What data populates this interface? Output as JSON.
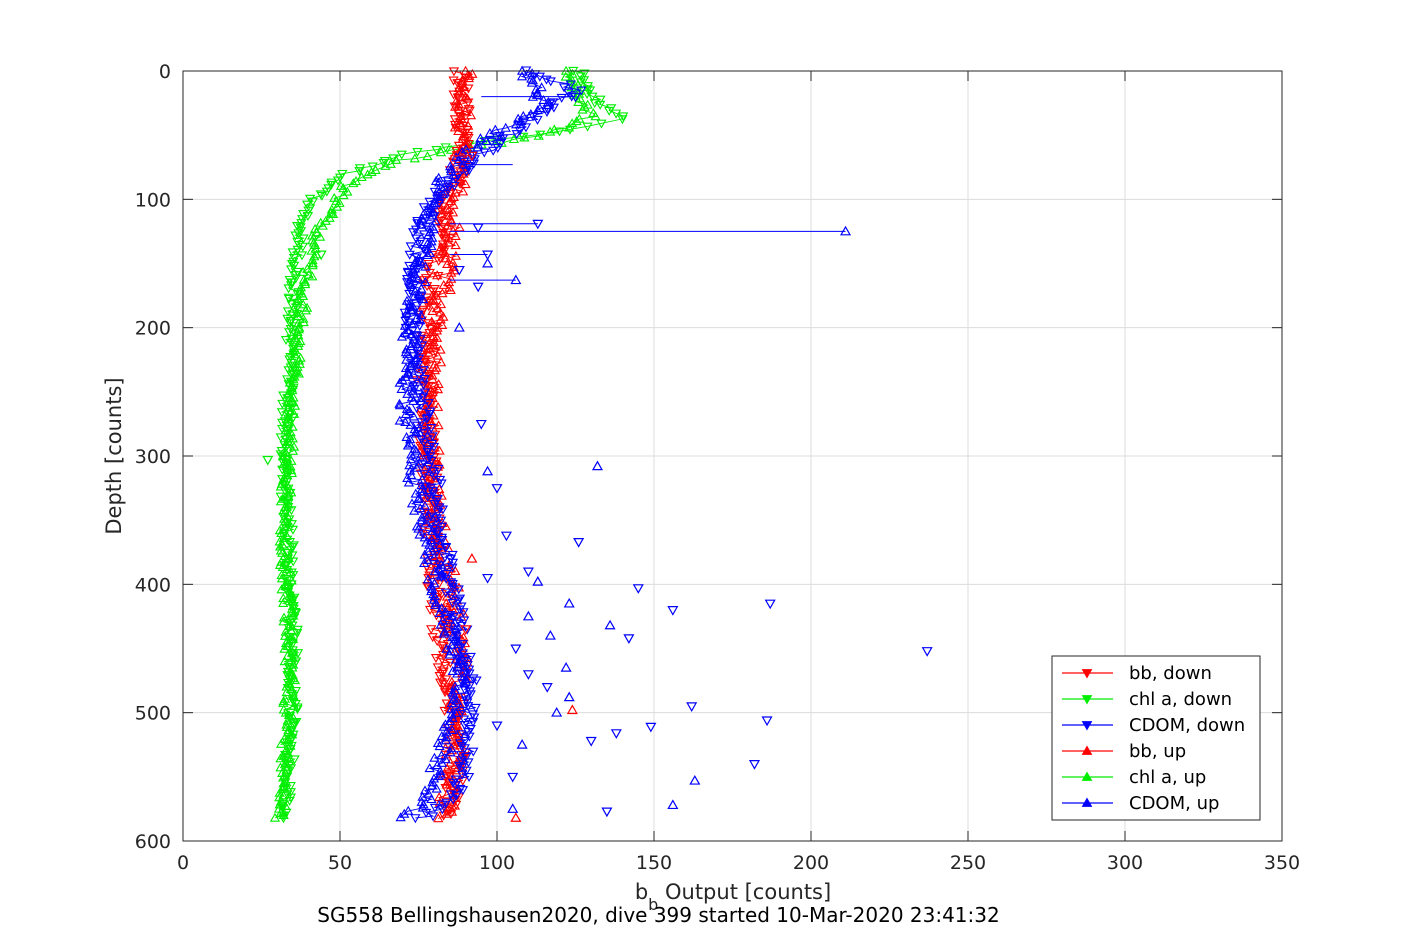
{
  "chart_data": {
    "type": "scatter",
    "xlabel": {
      "main": "b",
      "sub": "b",
      "rest": " Output [counts]"
    },
    "ylabel": "Depth [counts]",
    "xlim": [
      0,
      350
    ],
    "ylim": [
      0,
      600
    ],
    "y_reversed": true,
    "grid": true,
    "legend_placement": "bottom-right",
    "x_ticks": [
      0,
      50,
      100,
      150,
      200,
      250,
      300,
      350
    ],
    "y_ticks": [
      0,
      100,
      200,
      300,
      400,
      500,
      600
    ],
    "colors": {
      "bb": "#ff0000",
      "chla": "#00ee00",
      "cdom": "#0000ff"
    },
    "series": [
      {
        "name": "bb, down",
        "color": "#ff0000",
        "marker": "triangle-down",
        "x": [
          89,
          88,
          89,
          90,
          89,
          88,
          86,
          83,
          81,
          80,
          79,
          78,
          78,
          77,
          78,
          78,
          79,
          79,
          80,
          81,
          82,
          84,
          86,
          87,
          88,
          86,
          85,
          83
        ],
        "y": [
          0,
          20,
          40,
          50,
          60,
          70,
          90,
          110,
          130,
          150,
          170,
          190,
          210,
          240,
          270,
          300,
          330,
          360,
          390,
          420,
          450,
          480,
          500,
          520,
          540,
          560,
          570,
          580
        ]
      },
      {
        "name": "chl a, down",
        "color": "#00ee00",
        "marker": "triangle-down",
        "x": [
          126,
          130,
          140,
          125,
          95,
          70,
          52,
          42,
          38,
          36,
          35,
          34,
          34,
          33,
          32,
          33,
          34,
          34,
          35,
          35,
          35,
          34,
          34,
          33,
          32
        ],
        "y": [
          0,
          20,
          38,
          45,
          55,
          65,
          80,
          100,
          120,
          150,
          180,
          210,
          240,
          270,
          300,
          340,
          380,
          410,
          440,
          470,
          500,
          530,
          550,
          570,
          582
        ]
      },
      {
        "name": "CDOM, down",
        "color": "#0000ff",
        "marker": "triangle-down",
        "x": [
          112,
          125,
          115,
          108,
          100,
          92,
          84,
          78,
          75,
          74,
          73,
          74,
          75,
          77,
          79,
          81,
          83,
          85,
          88,
          90,
          92,
          91,
          90,
          89,
          86,
          80,
          74
        ],
        "y": [
          0,
          15,
          30,
          42,
          55,
          70,
          90,
          110,
          130,
          160,
          190,
          220,
          250,
          280,
          310,
          340,
          370,
          400,
          430,
          460,
          490,
          510,
          530,
          550,
          565,
          578,
          582
        ]
      },
      {
        "name": "bb, up",
        "color": "#ff0000",
        "marker": "triangle-up",
        "x": [
          84,
          84,
          85,
          86,
          86,
          87,
          88,
          88,
          87,
          86,
          84,
          82,
          80,
          79,
          79,
          80,
          82,
          86,
          88,
          89,
          89,
          89,
          90,
          91,
          90
        ],
        "y": [
          582,
          570,
          550,
          530,
          510,
          490,
          470,
          450,
          430,
          410,
          390,
          370,
          340,
          300,
          260,
          220,
          180,
          120,
          80,
          60,
          40,
          30,
          20,
          10,
          0
        ]
      },
      {
        "name": "chl a, up",
        "color": "#00ee00",
        "marker": "triangle-up",
        "x": [
          31,
          32,
          33,
          34,
          34,
          33,
          32,
          33,
          34,
          36,
          38,
          42,
          52,
          68,
          90,
          115,
          130,
          125,
          122
        ],
        "y": [
          582,
          560,
          520,
          480,
          440,
          400,
          360,
          320,
          280,
          230,
          180,
          130,
          90,
          70,
          60,
          50,
          35,
          15,
          0
        ]
      },
      {
        "name": "CDOM, up",
        "color": "#0000ff",
        "marker": "triangle-up",
        "x": [
          72,
          76,
          80,
          84,
          88,
          86,
          82,
          78,
          75,
          72,
          71,
          72,
          74,
          76,
          78,
          82,
          88,
          96,
          106,
          115,
          112,
          108
        ],
        "y": [
          582,
          570,
          550,
          520,
          480,
          450,
          410,
          370,
          330,
          290,
          250,
          210,
          180,
          150,
          120,
          90,
          70,
          55,
          40,
          25,
          10,
          0
        ]
      }
    ],
    "outliers_down": [
      {
        "s": 2,
        "x": 125,
        "y": 20
      },
      {
        "s": 2,
        "x": 113,
        "y": 119
      },
      {
        "s": 2,
        "x": 94,
        "y": 122
      },
      {
        "s": 2,
        "x": 97,
        "y": 143
      },
      {
        "s": 2,
        "x": 88,
        "y": 155
      },
      {
        "s": 2,
        "x": 94,
        "y": 168
      },
      {
        "s": 2,
        "x": 95,
        "y": 275
      },
      {
        "s": 2,
        "x": 100,
        "y": 325
      },
      {
        "s": 2,
        "x": 103,
        "y": 362
      },
      {
        "s": 2,
        "x": 126,
        "y": 367
      },
      {
        "s": 2,
        "x": 110,
        "y": 390
      },
      {
        "s": 2,
        "x": 97,
        "y": 395
      },
      {
        "s": 2,
        "x": 145,
        "y": 403
      },
      {
        "s": 2,
        "x": 187,
        "y": 415
      },
      {
        "s": 2,
        "x": 156,
        "y": 420
      },
      {
        "s": 2,
        "x": 142,
        "y": 442
      },
      {
        "s": 2,
        "x": 237,
        "y": 452
      },
      {
        "s": 2,
        "x": 110,
        "y": 470
      },
      {
        "s": 2,
        "x": 116,
        "y": 480
      },
      {
        "s": 2,
        "x": 162,
        "y": 495
      },
      {
        "s": 2,
        "x": 186,
        "y": 506
      },
      {
        "s": 2,
        "x": 149,
        "y": 511
      },
      {
        "s": 2,
        "x": 138,
        "y": 516
      },
      {
        "s": 2,
        "x": 130,
        "y": 522
      },
      {
        "s": 2,
        "x": 182,
        "y": 540
      },
      {
        "s": 2,
        "x": 105,
        "y": 550
      },
      {
        "s": 2,
        "x": 135,
        "y": 577
      },
      {
        "s": 2,
        "x": 100,
        "y": 510
      },
      {
        "s": 2,
        "x": 106,
        "y": 450
      },
      {
        "s": 0,
        "x": 92,
        "y": 66
      },
      {
        "s": 0,
        "x": 90,
        "y": 435
      },
      {
        "s": 1,
        "x": 35,
        "y": 270
      },
      {
        "s": 1,
        "x": 27,
        "y": 303
      },
      {
        "s": 1,
        "x": 44,
        "y": 143
      }
    ],
    "outliers_up": [
      {
        "s": 5,
        "x": 211,
        "y": 125
      },
      {
        "s": 5,
        "x": 106,
        "y": 163
      },
      {
        "s": 5,
        "x": 97,
        "y": 150
      },
      {
        "s": 5,
        "x": 88,
        "y": 200
      },
      {
        "s": 5,
        "x": 132,
        "y": 308
      },
      {
        "s": 5,
        "x": 97,
        "y": 312
      },
      {
        "s": 5,
        "x": 123,
        "y": 415
      },
      {
        "s": 5,
        "x": 136,
        "y": 432
      },
      {
        "s": 5,
        "x": 117,
        "y": 440
      },
      {
        "s": 5,
        "x": 122,
        "y": 465
      },
      {
        "s": 5,
        "x": 123,
        "y": 488
      },
      {
        "s": 5,
        "x": 119,
        "y": 500
      },
      {
        "s": 5,
        "x": 163,
        "y": 553
      },
      {
        "s": 5,
        "x": 156,
        "y": 572
      },
      {
        "s": 5,
        "x": 105,
        "y": 575
      },
      {
        "s": 5,
        "x": 113,
        "y": 398
      },
      {
        "s": 5,
        "x": 110,
        "y": 425
      },
      {
        "s": 5,
        "x": 108,
        "y": 525
      },
      {
        "s": 3,
        "x": 124,
        "y": 498
      },
      {
        "s": 3,
        "x": 106,
        "y": 582
      },
      {
        "s": 3,
        "x": 92,
        "y": 380
      },
      {
        "s": 4,
        "x": 35,
        "y": 258
      }
    ],
    "spikes": [
      {
        "s": 2,
        "x0": 85,
        "x1": 113,
        "y": 119
      },
      {
        "s": 5,
        "x0": 85,
        "x1": 211,
        "y": 125
      },
      {
        "s": 5,
        "x0": 85,
        "x1": 106,
        "y": 163
      },
      {
        "s": 2,
        "x0": 85,
        "x1": 97,
        "y": 143
      },
      {
        "s": 0,
        "x0": 85,
        "x1": 92,
        "y": 66
      },
      {
        "s": 2,
        "x0": 95,
        "x1": 125,
        "y": 20
      },
      {
        "s": 2,
        "x0": 90,
        "x1": 105,
        "y": 73
      }
    ]
  },
  "footer": {
    "text": "SG558 Bellingshausen2020, dive 399 started 10-Mar-2020 23:41:32"
  }
}
